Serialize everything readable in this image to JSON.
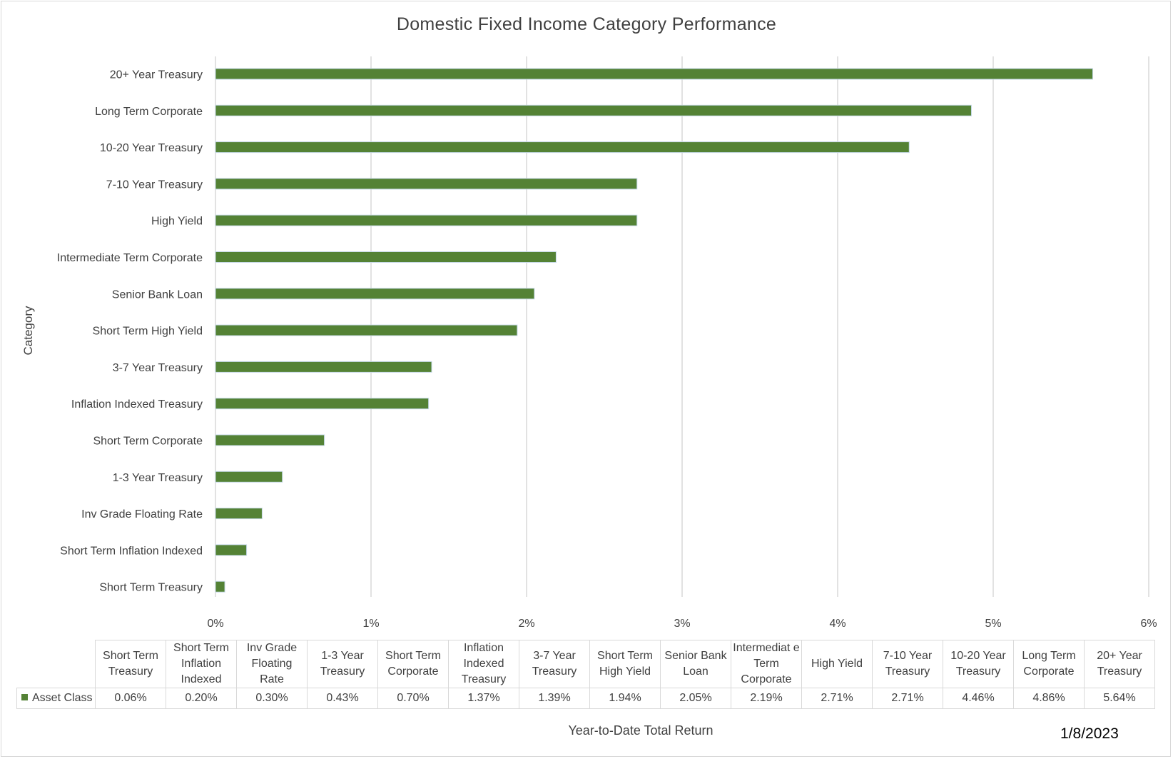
{
  "chart_data": {
    "type": "bar",
    "orientation": "horizontal",
    "title": "Domestic Fixed Income Category Performance",
    "xlabel": "Year-to-Date Total Return",
    "ylabel": "Category",
    "xlim": [
      0,
      6
    ],
    "x_ticks": [
      "0%",
      "1%",
      "2%",
      "3%",
      "4%",
      "5%",
      "6%"
    ],
    "grid": true,
    "bar_color": "#548235",
    "categories": [
      "Short Term Treasury",
      "Short Term Inflation Indexed",
      "Inv Grade Floating Rate",
      "1-3 Year Treasury",
      "Short Term Corporate",
      "Inflation Indexed Treasury",
      "3-7 Year Treasury",
      "Short Term High Yield",
      "Senior Bank Loan",
      "Intermediate Term Corporate",
      "High Yield",
      "7-10 Year Treasury",
      "10-20 Year Treasury",
      "Long Term Corporate",
      "20+ Year Treasury"
    ],
    "table_headers": [
      "Short Term Treasury",
      "Short Term Inflation Indexed",
      "Inv Grade Floating Rate",
      "1-3 Year Treasury",
      "Short Term Corporate",
      "Inflation Indexed Treasury",
      "3-7 Year Treasury",
      "Short Term High Yield",
      "Senior Bank Loan",
      "Intermediat e Term Corporate",
      "High Yield",
      "7-10 Year Treasury",
      "10-20 Year Treasury",
      "Long Term Corporate",
      "20+ Year Treasury"
    ],
    "series": [
      {
        "name": "Asset Class",
        "values": [
          0.06,
          0.2,
          0.3,
          0.43,
          0.7,
          1.37,
          1.39,
          1.94,
          2.05,
          2.19,
          2.71,
          2.71,
          4.46,
          4.86,
          5.64
        ],
        "labels": [
          "0.06%",
          "0.20%",
          "0.30%",
          "0.43%",
          "0.70%",
          "1.37%",
          "1.39%",
          "1.94%",
          "2.05%",
          "2.19%",
          "2.71%",
          "2.71%",
          "4.46%",
          "4.86%",
          "5.64%"
        ]
      }
    ],
    "date": "1/8/2023"
  }
}
